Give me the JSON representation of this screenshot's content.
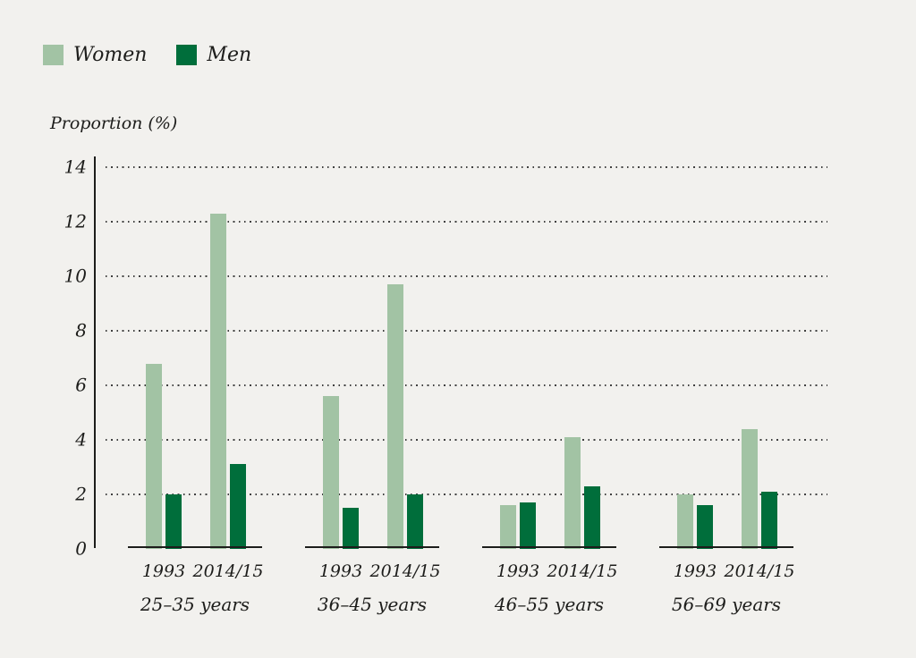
{
  "page": {
    "background": "#f2f1ee",
    "text_color": "#1d1d1b"
  },
  "legend": {
    "position": "top-left",
    "items": [
      {
        "label": "Women",
        "color": "#a2c3a4"
      },
      {
        "label": "Men",
        "color": "#006e3b"
      }
    ]
  },
  "chart_data": {
    "type": "bar",
    "title": "",
    "xlabel": "",
    "ylabel": "Proportion (%)",
    "ylim": [
      0,
      14
    ],
    "yticks": [
      0,
      2,
      4,
      6,
      8,
      10,
      12,
      14
    ],
    "grid": "horizontal-dotted",
    "legend_position": "top-left",
    "bar_colors": {
      "Women": "#a2c3a4",
      "Men": "#006e3b"
    },
    "categories": [
      "1993",
      "2014/15"
    ],
    "groups": [
      {
        "label": "25–35 years",
        "series": [
          {
            "name": "Women",
            "values": [
              6.8,
              12.3
            ]
          },
          {
            "name": "Men",
            "values": [
              2.0,
              3.1
            ]
          }
        ]
      },
      {
        "label": "36–45 years",
        "series": [
          {
            "name": "Women",
            "values": [
              5.6,
              9.7
            ]
          },
          {
            "name": "Men",
            "values": [
              1.5,
              2.0
            ]
          }
        ]
      },
      {
        "label": "46–55 years",
        "series": [
          {
            "name": "Women",
            "values": [
              1.6,
              4.1
            ]
          },
          {
            "name": "Men",
            "values": [
              1.7,
              2.3
            ]
          }
        ]
      },
      {
        "label": "56–69 years",
        "series": [
          {
            "name": "Women",
            "values": [
              2.0,
              4.4
            ]
          },
          {
            "name": "Men",
            "values": [
              1.6,
              2.1
            ]
          }
        ]
      }
    ]
  }
}
